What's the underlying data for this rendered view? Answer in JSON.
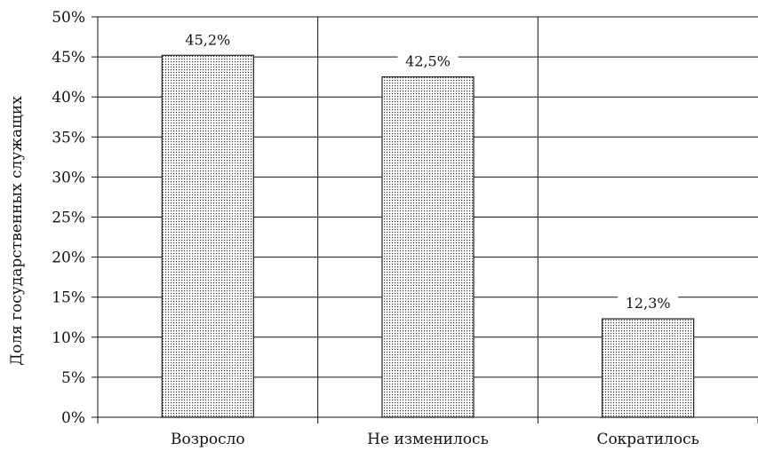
{
  "chart_data": {
    "type": "bar",
    "categories": [
      "Возросло",
      "Не изменилось",
      "Сократилось"
    ],
    "values": [
      45.2,
      42.5,
      12.3
    ],
    "data_labels": [
      "45,2%",
      "42,5%",
      "12,3%"
    ],
    "title": "",
    "xlabel": "",
    "ylabel": "Доля государственных служащих",
    "ylim": [
      0,
      50
    ],
    "y_ticks": [
      0,
      5,
      10,
      15,
      20,
      25,
      30,
      35,
      40,
      45,
      50
    ],
    "y_tick_labels": [
      "0%",
      "5%",
      "10%",
      "15%",
      "20%",
      "25%",
      "30%",
      "35%",
      "40%",
      "45%",
      "50%"
    ],
    "grid": true,
    "bar_fill": "dotted",
    "colors": {
      "bar_stroke": "#222222",
      "grid": "#111111",
      "dot": "#333333"
    }
  }
}
